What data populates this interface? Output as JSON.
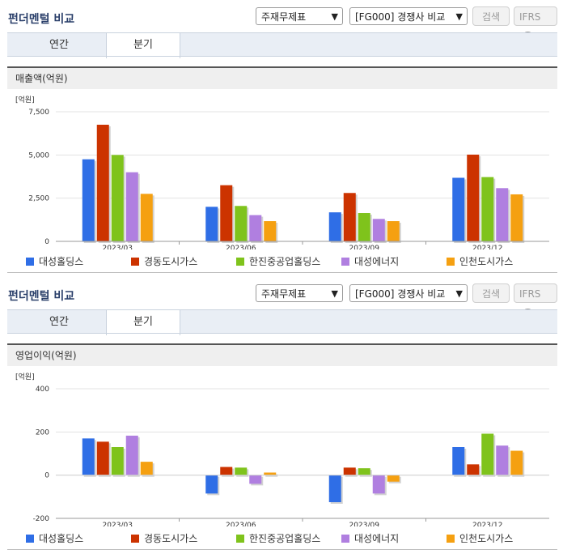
{
  "sections": [
    {
      "title": "펀더멘털 비교",
      "statement_select": "주재무제표",
      "peer_select": "[FG000] 경쟁사 비교",
      "search_button": "검색",
      "ifrs_label": "IFRS",
      "help_glyph": "?",
      "tabs": [
        "연간",
        "분기"
      ],
      "active_tab": 1,
      "panel_title": "매출액(억원)"
    },
    {
      "title": "펀더멘털 비교",
      "statement_select": "주재무제표",
      "peer_select": "[FG000] 경쟁사 비교",
      "search_button": "검색",
      "ifrs_label": "IFRS",
      "help_glyph": "?",
      "tabs": [
        "연간",
        "분기"
      ],
      "active_tab": 1,
      "panel_title": "영업이익(억원)"
    }
  ],
  "colors": {
    "series": [
      "#2f6ee6",
      "#cc3300",
      "#7fc31c",
      "#b07fe0",
      "#f5a011"
    ],
    "accent_title": "#2a3f6a"
  },
  "chart_data": [
    {
      "type": "bar",
      "unit_label": "[억원]",
      "categories": [
        "2023/03",
        "2023/06",
        "2023/09",
        "2023/12"
      ],
      "ylim": [
        0,
        7500
      ],
      "yticks": [
        0,
        2500,
        5000,
        7500
      ],
      "ytick_labels": [
        "0",
        "2,500",
        "5,000",
        "7,500"
      ],
      "series": [
        {
          "name": "대성홀딩스",
          "values": [
            4750,
            2000,
            1680,
            3680
          ]
        },
        {
          "name": "경동도시가스",
          "values": [
            6750,
            3250,
            2800,
            5020
          ]
        },
        {
          "name": "한진중공업홀딩스",
          "values": [
            5000,
            2050,
            1640,
            3720
          ]
        },
        {
          "name": "대성에너지",
          "values": [
            4000,
            1520,
            1300,
            3080
          ]
        },
        {
          "name": "인천도시가스",
          "values": [
            2750,
            1170,
            1170,
            2720
          ]
        }
      ],
      "grid": true,
      "legend": "bottom"
    },
    {
      "type": "bar",
      "unit_label": "[억원]",
      "categories": [
        "2023/03",
        "2023/06",
        "2023/09",
        "2023/12"
      ],
      "ylim": [
        -200,
        400
      ],
      "yticks": [
        -200,
        0,
        200,
        400
      ],
      "ytick_labels": [
        "-200",
        "0",
        "200",
        "400"
      ],
      "series": [
        {
          "name": "대성홀딩스",
          "values": [
            170,
            -85,
            -125,
            130
          ]
        },
        {
          "name": "경동도시가스",
          "values": [
            155,
            38,
            35,
            50
          ]
        },
        {
          "name": "한진중공업홀딩스",
          "values": [
            130,
            35,
            32,
            192
          ]
        },
        {
          "name": "대성에너지",
          "values": [
            183,
            -40,
            -85,
            137
          ]
        },
        {
          "name": "인천도시가스",
          "values": [
            62,
            12,
            -30,
            113
          ]
        }
      ],
      "grid": true,
      "legend": "bottom"
    }
  ]
}
